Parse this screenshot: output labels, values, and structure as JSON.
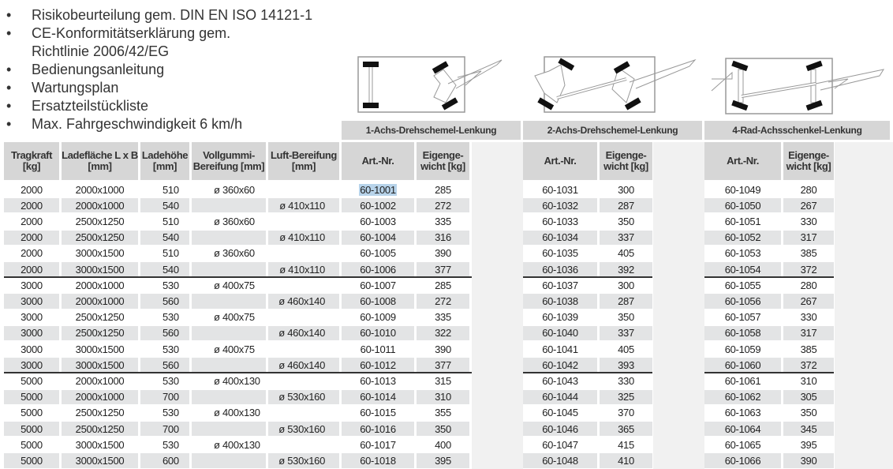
{
  "features": [
    "Risikobeurteilung gem. DIN EN ISO 14121-1",
    "CE-Konformitätserklärung gem.",
    "Richtlinie 2006/42/EG",
    "Bedienungsanleitung",
    "Wartungsplan",
    "Ersatzteilstückliste",
    "Max. Fahrgeschwindigkeit 6 km/h"
  ],
  "bullet_symbol": "•",
  "columns": {
    "tragkraft": "Tragkraft [kg]",
    "ladeflaeche": "Ladefläche L x B [mm]",
    "ladehoehe": "Ladehöhe [mm]",
    "vollgummi": "Vollgummi- Bereifung [mm]",
    "luft": "Luft-Bereifung [mm]",
    "art_nr": "Art.-Nr.",
    "eigengewicht": "Eigenge- wicht [kg]"
  },
  "groups": [
    {
      "title": "1-Achs-Drehschemel-Lenkung",
      "diagram": "1-axle-turntable-steering-diagram",
      "art_nr": [
        "60-1001",
        "60-1002",
        "60-1003",
        "60-1004",
        "60-1005",
        "60-1006",
        "60-1007",
        "60-1008",
        "60-1009",
        "60-1010",
        "60-1011",
        "60-1012",
        "60-1013",
        "60-1014",
        "60-1015",
        "60-1016",
        "60-1017",
        "60-1018"
      ],
      "gewicht": [
        "285",
        "272",
        "335",
        "316",
        "390",
        "377",
        "285",
        "272",
        "335",
        "322",
        "390",
        "377",
        "315",
        "310",
        "355",
        "350",
        "400",
        "395"
      ]
    },
    {
      "title": "2-Achs-Drehschemel-Lenkung",
      "diagram": "2-axle-turntable-steering-diagram",
      "art_nr": [
        "60-1031",
        "60-1032",
        "60-1033",
        "60-1034",
        "60-1035",
        "60-1036",
        "60-1037",
        "60-1038",
        "60-1039",
        "60-1040",
        "60-1041",
        "60-1042",
        "60-1043",
        "60-1044",
        "60-1045",
        "60-1046",
        "60-1047",
        "60-1048"
      ],
      "gewicht": [
        "300",
        "287",
        "350",
        "337",
        "405",
        "392",
        "300",
        "287",
        "350",
        "337",
        "405",
        "393",
        "330",
        "325",
        "370",
        "365",
        "415",
        "410"
      ]
    },
    {
      "title": "4-Rad-Achsschenkel-Lenkung",
      "diagram": "4-wheel-stub-axle-steering-diagram",
      "art_nr": [
        "60-1049",
        "60-1050",
        "60-1051",
        "60-1052",
        "60-1053",
        "60-1054",
        "60-1055",
        "60-1056",
        "60-1057",
        "60-1058",
        "60-1059",
        "60-1060",
        "60-1061",
        "60-1062",
        "60-1063",
        "60-1064",
        "60-1065",
        "60-1066"
      ],
      "gewicht": [
        "280",
        "267",
        "330",
        "317",
        "385",
        "372",
        "280",
        "267",
        "330",
        "317",
        "385",
        "372",
        "310",
        "305",
        "350",
        "345",
        "395",
        "390"
      ]
    }
  ],
  "rows": [
    [
      "2000",
      "2000x1000",
      "510",
      "ø 360x60",
      ""
    ],
    [
      "2000",
      "2000x1000",
      "540",
      "",
      "ø 410x110"
    ],
    [
      "2000",
      "2500x1250",
      "510",
      "ø 360x60",
      ""
    ],
    [
      "2000",
      "2500x1250",
      "540",
      "",
      "ø 410x110"
    ],
    [
      "2000",
      "3000x1500",
      "510",
      "ø 360x60",
      ""
    ],
    [
      "2000",
      "3000x1500",
      "540",
      "",
      "ø 410x110"
    ],
    [
      "3000",
      "2000x1000",
      "530",
      "ø 400x75",
      ""
    ],
    [
      "3000",
      "2000x1000",
      "560",
      "",
      "ø 460x140"
    ],
    [
      "3000",
      "2500x1250",
      "530",
      "ø 400x75",
      ""
    ],
    [
      "3000",
      "2500x1250",
      "560",
      "",
      "ø 460x140"
    ],
    [
      "3000",
      "3000x1500",
      "530",
      "ø 400x75",
      ""
    ],
    [
      "3000",
      "3000x1500",
      "560",
      "",
      "ø 460x140"
    ],
    [
      "5000",
      "2000x1000",
      "530",
      "ø 400x130",
      ""
    ],
    [
      "5000",
      "2000x1000",
      "700",
      "",
      "ø 530x160"
    ],
    [
      "5000",
      "2500x1250",
      "530",
      "ø 400x130",
      ""
    ],
    [
      "5000",
      "2500x1250",
      "700",
      "",
      "ø 530x160"
    ],
    [
      "5000",
      "3000x1500",
      "530",
      "ø 400x130",
      ""
    ],
    [
      "5000",
      "3000x1500",
      "600",
      "",
      "ø 530x160"
    ]
  ],
  "highlighted_cell": "60-1001",
  "colors": {
    "header_bg": "#d6d6d6",
    "stripe_bg": "#e3e4e5",
    "pale_bg": "#f1f1f1",
    "highlight": "#b7d3ea",
    "separator": "#333333"
  }
}
